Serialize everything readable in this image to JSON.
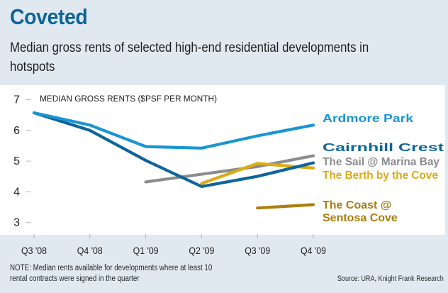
{
  "header": {
    "title": "Coveted",
    "subtitle": "Median gross rents of selected high-end residential developments in hotspots"
  },
  "footer": {
    "note": "NOTE: Median rents available for developments where at least 10 rental contracts were signed in the quarter",
    "source": "Source: URA, Knight Frank Research"
  },
  "chart_data": {
    "type": "line",
    "title": "Coveted",
    "subtitle": "Median gross rents of selected high-end residential developments in hotspots",
    "ylabel": "MEDIAN GROSS RENTS ($PSF PER MONTH)",
    "xlabel": "",
    "categories": [
      "Q3 '08",
      "Q4 '08",
      "Q1 '09",
      "Q2 '09",
      "Q3 '09",
      "Q4 '09"
    ],
    "yticks": [
      "3",
      "4",
      "5",
      "6",
      "7"
    ],
    "ylim": [
      3,
      7
    ],
    "grid": false,
    "legend": "right-end labels",
    "series": [
      {
        "name": "Ardmore Park",
        "label_lines": [
          "Ardmore Park"
        ],
        "color": "#1a95d3",
        "values": [
          6.55,
          6.15,
          5.45,
          5.4,
          5.8,
          6.15
        ]
      },
      {
        "name": "Cairnhill Crest",
        "label_lines": [
          "Cairnhill Crest"
        ],
        "color": "#0e6599",
        "values": [
          6.55,
          5.98,
          5.0,
          4.15,
          4.48,
          4.92
        ]
      },
      {
        "name": "The Sail @ Marina Bay",
        "label_lines": [
          "The Sail @ Marina Bay"
        ],
        "color": "#8a8c8e",
        "values": [
          null,
          null,
          4.3,
          4.55,
          4.8,
          5.15
        ]
      },
      {
        "name": "The Berth by the Cove",
        "label_lines": [
          "The Berth by the Cove"
        ],
        "color": "#dcaa12",
        "values": [
          null,
          null,
          null,
          4.25,
          4.9,
          4.75
        ]
      },
      {
        "name": "The Coast @ Sentosa Cove",
        "label_lines": [
          "The Coast @",
          "Sentosa Cove"
        ],
        "color": "#ad7e0e",
        "values": [
          null,
          null,
          null,
          null,
          3.45,
          3.56
        ]
      }
    ]
  }
}
